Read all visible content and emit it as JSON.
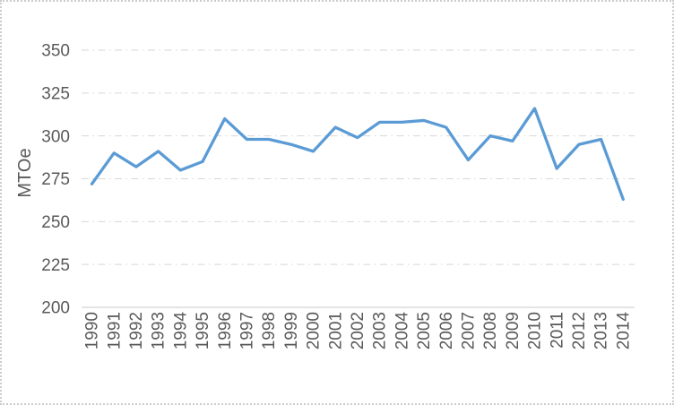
{
  "window": {
    "background": "#ffffff",
    "border_color": "#cccccc"
  },
  "chart_data": {
    "type": "line",
    "title": "",
    "xlabel": "",
    "ylabel": "MTOe",
    "categories": [
      "1990",
      "1991",
      "1992",
      "1993",
      "1994",
      "1995",
      "1996",
      "1997",
      "1998",
      "1999",
      "2000",
      "2001",
      "2002",
      "2003",
      "2004",
      "2005",
      "2006",
      "2007",
      "2008",
      "2009",
      "2010",
      "2011",
      "2012",
      "2013",
      "2014"
    ],
    "series": [
      {
        "color": "#5B9BD5",
        "values": [
          272,
          290,
          282,
          291,
          280,
          285,
          310,
          298,
          298,
          295,
          291,
          305,
          299,
          308,
          308,
          309,
          305,
          286,
          300,
          297,
          316,
          281,
          295,
          298,
          263
        ]
      }
    ],
    "ylim": [
      200,
      350
    ],
    "yticks": [
      200,
      225,
      250,
      275,
      300,
      325,
      350
    ],
    "grid": {
      "horizontal": true,
      "style": "dash-dot",
      "color": "#D6D6D6"
    },
    "axis": {
      "baseline_color": "#C9C9C9",
      "tick_label_color": "#595959",
      "x_tick_rotation": -90
    },
    "legend": "none"
  }
}
